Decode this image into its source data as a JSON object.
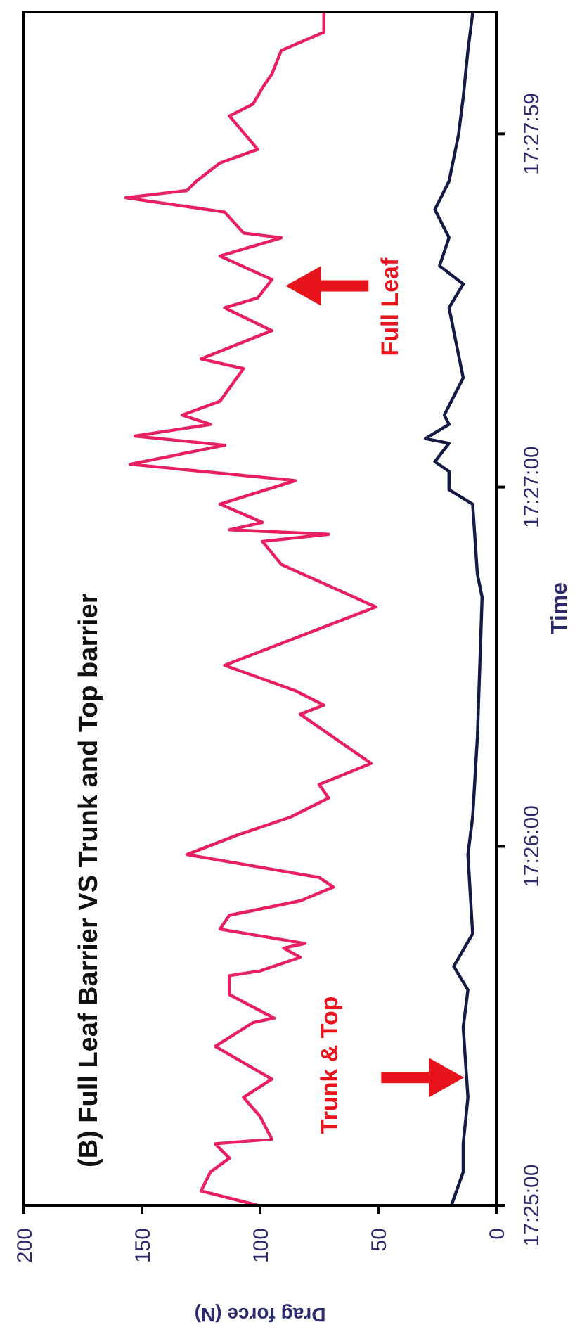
{
  "chart_data": {
    "type": "line",
    "title": "(B) Full Leaf Barrier VS Trunk and Top barrier",
    "xlabel": "Drag force (N)",
    "ylabel": "Time",
    "xlim": [
      200,
      0
    ],
    "ylim": [
      17.41667,
      17.47208
    ],
    "xticks": [
      200,
      150,
      100,
      50,
      0
    ],
    "yticks": [
      {
        "value": 17.41667,
        "label": "17:25:00"
      },
      {
        "value": 17.43333,
        "label": "17:26:00"
      },
      {
        "value": 17.45,
        "label": "17:27:00"
      },
      {
        "value": 17.46639,
        "label": "17:27:59"
      }
    ],
    "annotations": [
      "Full Leaf",
      "Trunk & Top"
    ],
    "series": [
      {
        "color": "#e8205f",
        "values": [
          17.41667,
          17.41734,
          17.41822,
          17.41886,
          17.41953,
          17.41974,
          17.4208,
          17.42168,
          17.42253,
          17.42405,
          17.42515,
          17.42536,
          17.42645,
          17.42733,
          17.42755,
          17.42818,
          17.42861,
          17.42882,
          17.42949,
          17.43013,
          17.4308,
          17.43144,
          17.43189,
          17.43295,
          17.43384,
          17.43469,
          17.43557,
          17.4362,
          17.43718,
          17.43946,
          17.43988,
          17.44055,
          17.44173,
          17.44444,
          17.44641,
          17.44748,
          17.44781,
          17.44802,
          17.44836,
          17.44921,
          17.4503,
          17.45106,
          17.45194,
          17.45237,
          17.45291,
          17.45334,
          17.45398,
          17.4555,
          17.45595,
          17.45726,
          17.45832,
          17.45878,
          17.45963,
          17.46072,
          17.46157,
          17.46179,
          17.46276,
          17.46343,
          17.46376,
          17.46419,
          17.46504,
          17.46567,
          17.46722,
          17.46777,
          17.46853,
          17.46917,
          17.47026,
          17.47111,
          17.47208
        ],
        "x": [
          101,
          125,
          121,
          113,
          119,
          95,
          100,
          107,
          95,
          119,
          103,
          94,
          113,
          113,
          100,
          83,
          90,
          81,
          117,
          113,
          83,
          69,
          75,
          131,
          110,
          87,
          71,
          75,
          53,
          83,
          73,
          85,
          115,
          51,
          91,
          99,
          71,
          113,
          99,
          117,
          85,
          155,
          115,
          153,
          121,
          133,
          117,
          107,
          125,
          95,
          115,
          101,
          95,
          117,
          91,
          107,
          115,
          157,
          131,
          127,
          117,
          101,
          113,
          103,
          99,
          95,
          91,
          73,
          73
        ]
      },
      {
        "color": "#141a45",
        "values": [
          17.41667,
          17.41822,
          17.41953,
          17.42168,
          17.42493,
          17.42667,
          17.42776,
          17.42928,
          17.43295,
          17.43469,
          17.43839,
          17.44489,
          17.44596,
          17.44921,
          17.44988,
          17.45073,
          17.45118,
          17.45203,
          17.45225,
          17.45291,
          17.45334,
          17.45507,
          17.45832,
          17.45942,
          17.46027,
          17.46157,
          17.46288,
          17.46419,
          17.46634,
          17.46808,
          17.47026,
          17.47199
        ],
        "x": [
          19,
          14,
          14,
          12,
          14,
          12,
          18,
          10,
          12,
          10,
          8,
          6,
          8,
          10,
          20,
          20,
          26,
          20,
          30,
          20,
          22,
          14,
          20,
          14,
          24,
          20,
          26,
          20,
          16,
          14,
          12,
          10
        ]
      }
    ]
  }
}
